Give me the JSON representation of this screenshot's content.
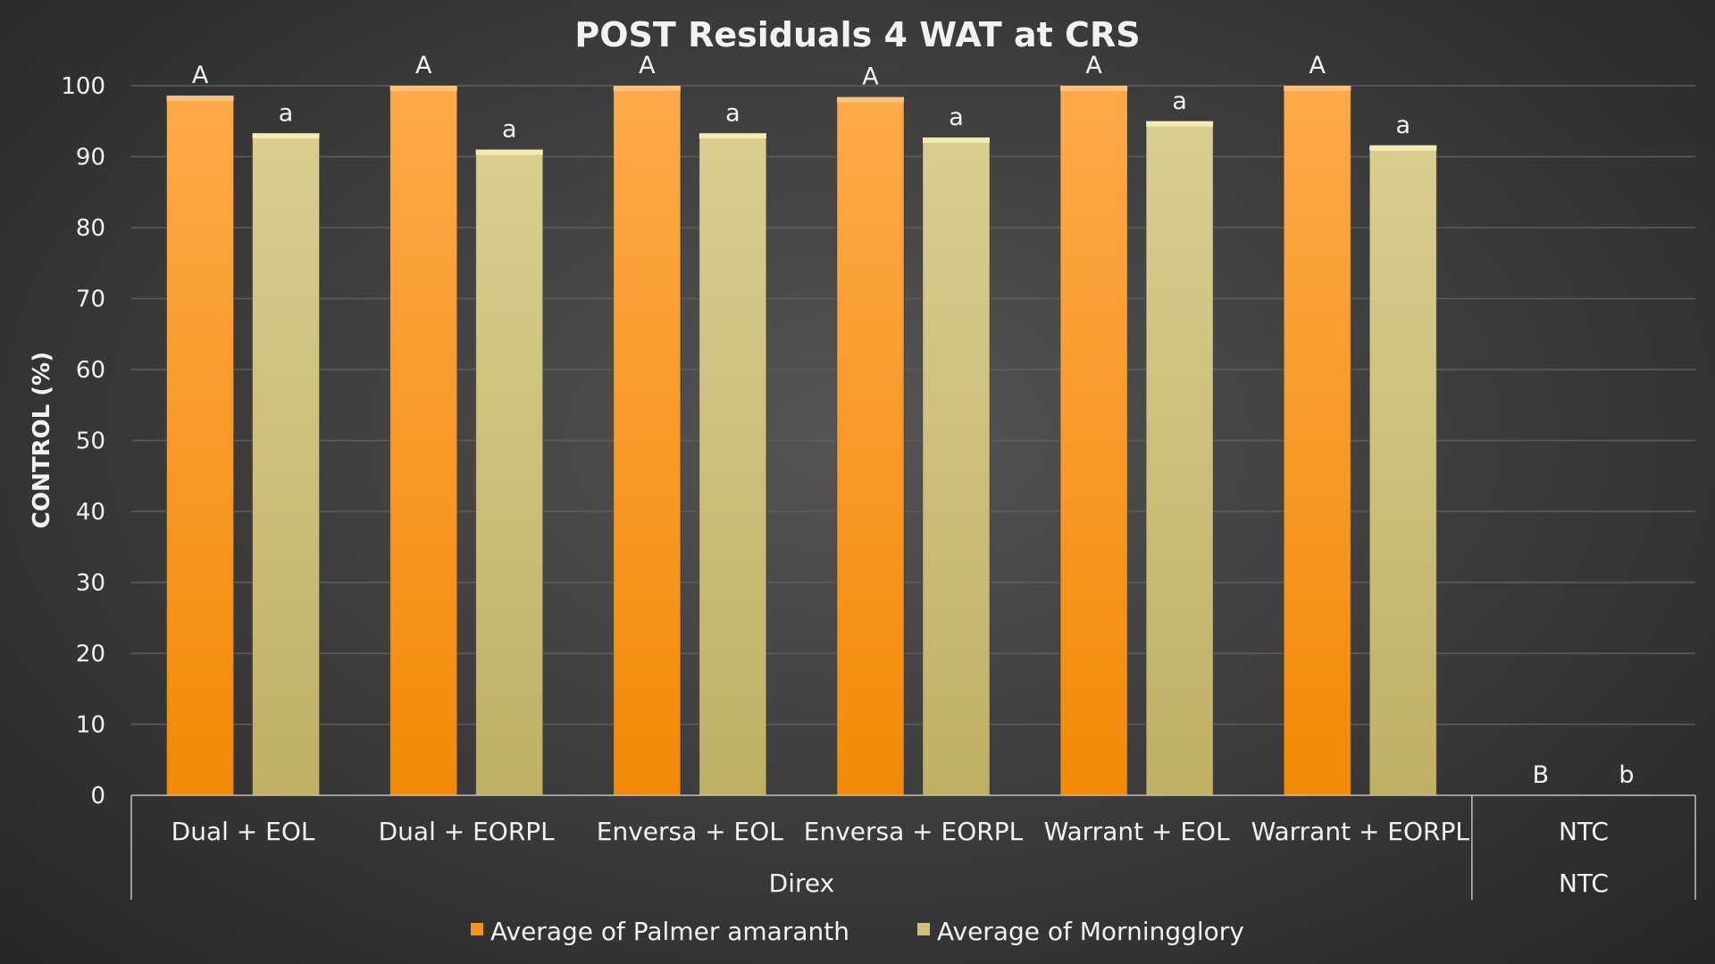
{
  "chart_data": {
    "type": "bar",
    "title": "POST Residuals 4 WAT at CRS",
    "ylabel": "CONTROL (%)",
    "xlabel": "",
    "ylim": [
      0,
      100
    ],
    "yticks": [
      0,
      10,
      20,
      30,
      40,
      50,
      60,
      70,
      80,
      90,
      100
    ],
    "grid": true,
    "categories": [
      "Dual + EOL",
      "Dual + EORPL",
      "Enversa + EOL",
      "Enversa + EORPL",
      "Warrant + EOL",
      "Warrant + EORPL",
      "NTC"
    ],
    "outer_groups": [
      {
        "label": "Direx",
        "span": 6
      },
      {
        "label": "NTC",
        "span": 1
      }
    ],
    "series": [
      {
        "name": "Average of Palmer amaranth",
        "color": "#f7941d",
        "values": [
          98.6,
          100,
          100,
          98.4,
          100,
          100,
          0
        ],
        "letters": [
          "A",
          "A",
          "A",
          "A",
          "A",
          "A",
          "B"
        ]
      },
      {
        "name": "Average of Morningglory",
        "color": "#cfc17a",
        "values": [
          93.3,
          91.0,
          93.3,
          92.7,
          95.0,
          91.6,
          0
        ],
        "letters": [
          "a",
          "a",
          "a",
          "a",
          "a",
          "a",
          "b"
        ]
      }
    ],
    "legend": "bottom"
  }
}
